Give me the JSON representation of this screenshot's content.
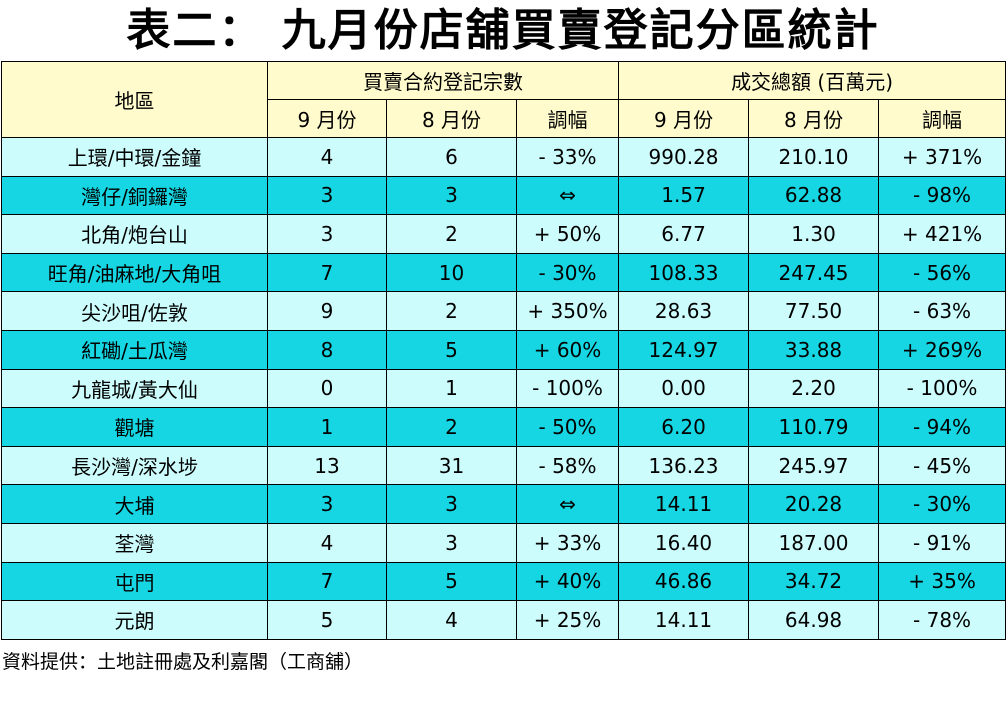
{
  "title": "表二：  九月份店舖買賣登記分區統計",
  "header": {
    "district": "地區",
    "group_count": "買賣合約登記宗數",
    "group_value": "成交總額 (百萬元)",
    "sep": "9 月份",
    "aug": "8 月份",
    "change": "調幅"
  },
  "rows": [
    {
      "district": "上環/中環/金鐘",
      "c_sep": "4",
      "c_aug": "6",
      "c_chg": "- 33%",
      "v_sep": "990.28",
      "v_aug": "210.10",
      "v_chg": "+ 371%"
    },
    {
      "district": "灣仔/銅鑼灣",
      "c_sep": "3",
      "c_aug": "3",
      "c_chg": "⇔",
      "v_sep": "1.57",
      "v_aug": "62.88",
      "v_chg": "- 98%"
    },
    {
      "district": "北角/炮台山",
      "c_sep": "3",
      "c_aug": "2",
      "c_chg": "+ 50%",
      "v_sep": "6.77",
      "v_aug": "1.30",
      "v_chg": "+ 421%"
    },
    {
      "district": "旺角/油麻地/大角咀",
      "c_sep": "7",
      "c_aug": "10",
      "c_chg": "- 30%",
      "v_sep": "108.33",
      "v_aug": "247.45",
      "v_chg": "- 56%"
    },
    {
      "district": "尖沙咀/佐敦",
      "c_sep": "9",
      "c_aug": "2",
      "c_chg": "+ 350%",
      "v_sep": "28.63",
      "v_aug": "77.50",
      "v_chg": "- 63%"
    },
    {
      "district": "紅磡/土瓜灣",
      "c_sep": "8",
      "c_aug": "5",
      "c_chg": "+ 60%",
      "v_sep": "124.97",
      "v_aug": "33.88",
      "v_chg": "+ 269%"
    },
    {
      "district": "九龍城/黃大仙",
      "c_sep": "0",
      "c_aug": "1",
      "c_chg": "- 100%",
      "v_sep": "0.00",
      "v_aug": "2.20",
      "v_chg": "- 100%"
    },
    {
      "district": "觀塘",
      "c_sep": "1",
      "c_aug": "2",
      "c_chg": "- 50%",
      "v_sep": "6.20",
      "v_aug": "110.79",
      "v_chg": "- 94%"
    },
    {
      "district": "長沙灣/深水埗",
      "c_sep": "13",
      "c_aug": "31",
      "c_chg": "- 58%",
      "v_sep": "136.23",
      "v_aug": "245.97",
      "v_chg": "- 45%"
    },
    {
      "district": "大埔",
      "c_sep": "3",
      "c_aug": "3",
      "c_chg": "⇔",
      "v_sep": "14.11",
      "v_aug": "20.28",
      "v_chg": "- 30%"
    },
    {
      "district": "荃灣",
      "c_sep": "4",
      "c_aug": "3",
      "c_chg": "+ 33%",
      "v_sep": "16.40",
      "v_aug": "187.00",
      "v_chg": "- 91%"
    },
    {
      "district": "屯門",
      "c_sep": "7",
      "c_aug": "5",
      "c_chg": "+ 40%",
      "v_sep": "46.86",
      "v_aug": "34.72",
      "v_chg": "+ 35%"
    },
    {
      "district": "元朗",
      "c_sep": "5",
      "c_aug": "4",
      "c_chg": "+ 25%",
      "v_sep": "14.11",
      "v_aug": "64.98",
      "v_chg": "- 78%"
    }
  ],
  "source": "資料提供：土地註冊處及利嘉閣（工商舖）",
  "colors": {
    "header_bg": "#fffbcc",
    "row_light": "#cdfcfc",
    "row_dark": "#15d6e2"
  }
}
